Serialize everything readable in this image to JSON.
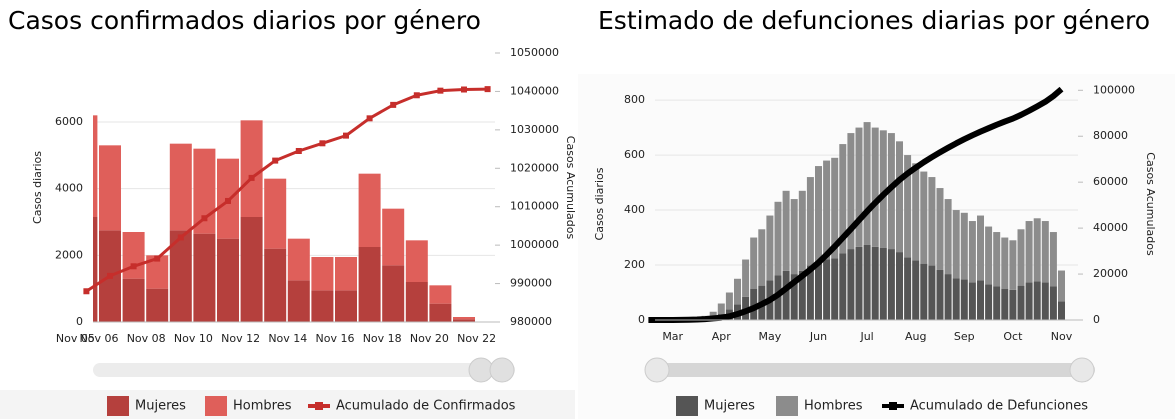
{
  "chart_data": [
    {
      "type": "bar",
      "stacked": true,
      "title": "Casos confirmados diarios por género",
      "y_label": "Casos diarios",
      "y2_label": "Casos Acumulados",
      "categories": [
        "Nov 05",
        "Nov 06",
        null,
        "Nov 08",
        null,
        "Nov 10",
        null,
        "Nov 12",
        null,
        "Nov 14",
        null,
        "Nov 16",
        null,
        "Nov 18",
        null,
        "Nov 20",
        null,
        "Nov 22"
      ],
      "ylim": [
        0,
        8070
      ],
      "yticks": [
        0,
        2000,
        4000,
        6000
      ],
      "y2lim": [
        980000,
        1050000
      ],
      "y2ticks": [
        980000,
        990000,
        1000000,
        1010000,
        1020000,
        1030000,
        1040000,
        1050000
      ],
      "markers": true,
      "series": [
        {
          "name": "Mujeres",
          "color": "#b5403d",
          "values": [
            3150,
            2750,
            1300,
            1000,
            2750,
            2650,
            2500,
            3150,
            2200,
            1250,
            950,
            950,
            2250,
            1700,
            1200,
            550,
            80,
            0
          ]
        },
        {
          "name": "Hombres",
          "color": "#df5f5a",
          "values": [
            3050,
            2550,
            1400,
            1000,
            2600,
            2550,
            2400,
            2900,
            2100,
            1250,
            1000,
            1000,
            2200,
            1700,
            1250,
            550,
            70,
            0
          ]
        },
        {
          "name": "Acumulado de Confirmados",
          "color": "#c62e2b",
          "axis": "y2",
          "values": [
            988000,
            992000,
            994500,
            996500,
            1002000,
            1007000,
            1011500,
            1017500,
            1022000,
            1024500,
            1026500,
            1028500,
            1033000,
            1036500,
            1039000,
            1040200,
            1040500,
            1040600
          ]
        }
      ]
    },
    {
      "type": "bar",
      "stacked": true,
      "title": "Estimado de defunciones diarias por género",
      "y_label": "Casos diarios",
      "y2_label": "Casos Acumulados",
      "categories": [
        null,
        null,
        null,
        "Mar",
        null,
        null,
        null,
        null,
        null,
        "Apr",
        null,
        null,
        null,
        null,
        null,
        "May",
        null,
        null,
        null,
        null,
        null,
        "Jun",
        null,
        null,
        null,
        null,
        null,
        "Jul",
        null,
        null,
        null,
        null,
        null,
        "Aug",
        null,
        null,
        null,
        null,
        null,
        "Sep",
        null,
        null,
        null,
        null,
        null,
        "Oct",
        null,
        null,
        null,
        null,
        null,
        "Nov"
      ],
      "ylim": [
        0,
        844
      ],
      "yticks": [
        0,
        200,
        400,
        600,
        800
      ],
      "y2lim": [
        0,
        101000
      ],
      "y2ticks": [
        0,
        20000,
        40000,
        60000,
        80000,
        100000
      ],
      "markers": false,
      "series": [
        {
          "name": "Mujeres",
          "color": "#555555",
          "values": [
            0,
            0,
            0,
            0,
            0,
            0,
            2,
            6,
            11,
            23,
            38,
            57,
            84,
            114,
            125,
            144,
            163,
            179,
            167,
            179,
            198,
            213,
            220,
            224,
            243,
            258,
            266,
            274,
            266,
            262,
            258,
            247,
            228,
            217,
            205,
            198,
            182,
            167,
            152,
            148,
            137,
            144,
            129,
            122,
            114,
            110,
            125,
            137,
            141,
            137,
            122,
            68
          ]
        },
        {
          "name": "Hombres",
          "color": "#8c8c8c",
          "values": [
            0,
            0,
            0,
            0,
            0,
            0,
            3,
            9,
            19,
            37,
            62,
            93,
            136,
            186,
            205,
            236,
            267,
            291,
            273,
            291,
            322,
            347,
            360,
            366,
            397,
            422,
            434,
            446,
            434,
            428,
            422,
            403,
            372,
            353,
            335,
            322,
            298,
            273,
            248,
            242,
            223,
            236,
            211,
            198,
            186,
            180,
            205,
            223,
            229,
            223,
            198,
            112
          ]
        },
        {
          "name": "Acumulado de Defunciones",
          "color": "#000000",
          "axis": "y2",
          "values": [
            0,
            0,
            0,
            0,
            50,
            100,
            200,
            400,
            700,
            1000,
            1600,
            2600,
            3800,
            5200,
            6900,
            8700,
            11000,
            13700,
            16500,
            19200,
            22000,
            25000,
            28400,
            32000,
            35800,
            39600,
            43500,
            47300,
            51000,
            54500,
            57800,
            61000,
            63800,
            66300,
            68700,
            70900,
            73000,
            75000,
            76900,
            78700,
            80400,
            82000,
            83500,
            85000,
            86400,
            87700,
            89300,
            91100,
            93000,
            95000,
            97500,
            100500
          ]
        }
      ]
    }
  ]
}
